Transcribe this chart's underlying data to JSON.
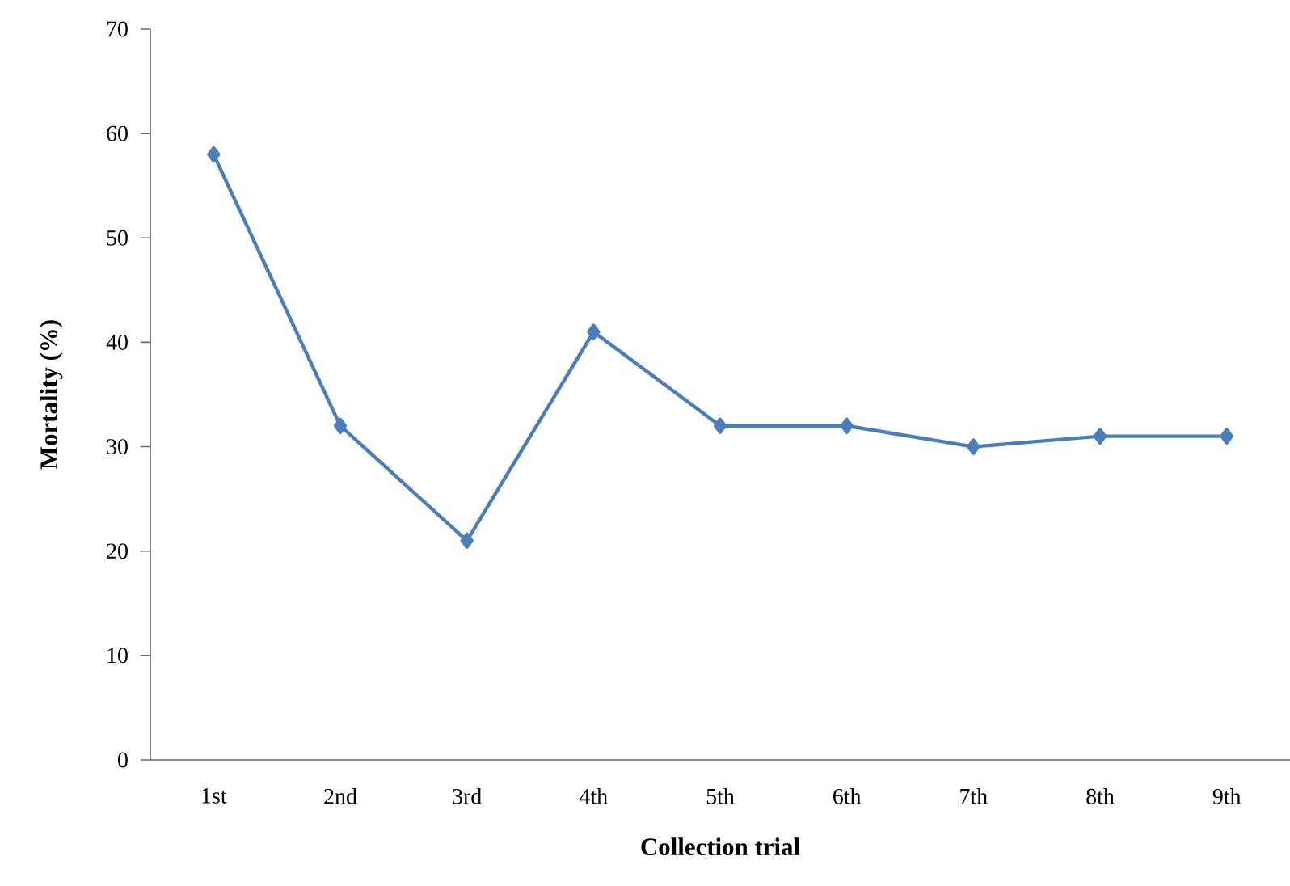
{
  "chart_data": {
    "type": "line",
    "xlabel": "Collection trial",
    "ylabel": "Mortality (%)",
    "categories": [
      "1st",
      "2nd",
      "3rd",
      "4th",
      "5th",
      "6th",
      "7th",
      "8th",
      "9th"
    ],
    "series": [
      {
        "color": "#4a7ebb",
        "values": [
          58,
          32,
          21,
          41,
          32,
          32,
          30,
          31,
          31
        ]
      }
    ],
    "ylim": [
      0,
      70
    ],
    "yticks": [
      0,
      10,
      20,
      30,
      40,
      50,
      60,
      70
    ],
    "marker": "diamond",
    "line_style": "solid"
  }
}
